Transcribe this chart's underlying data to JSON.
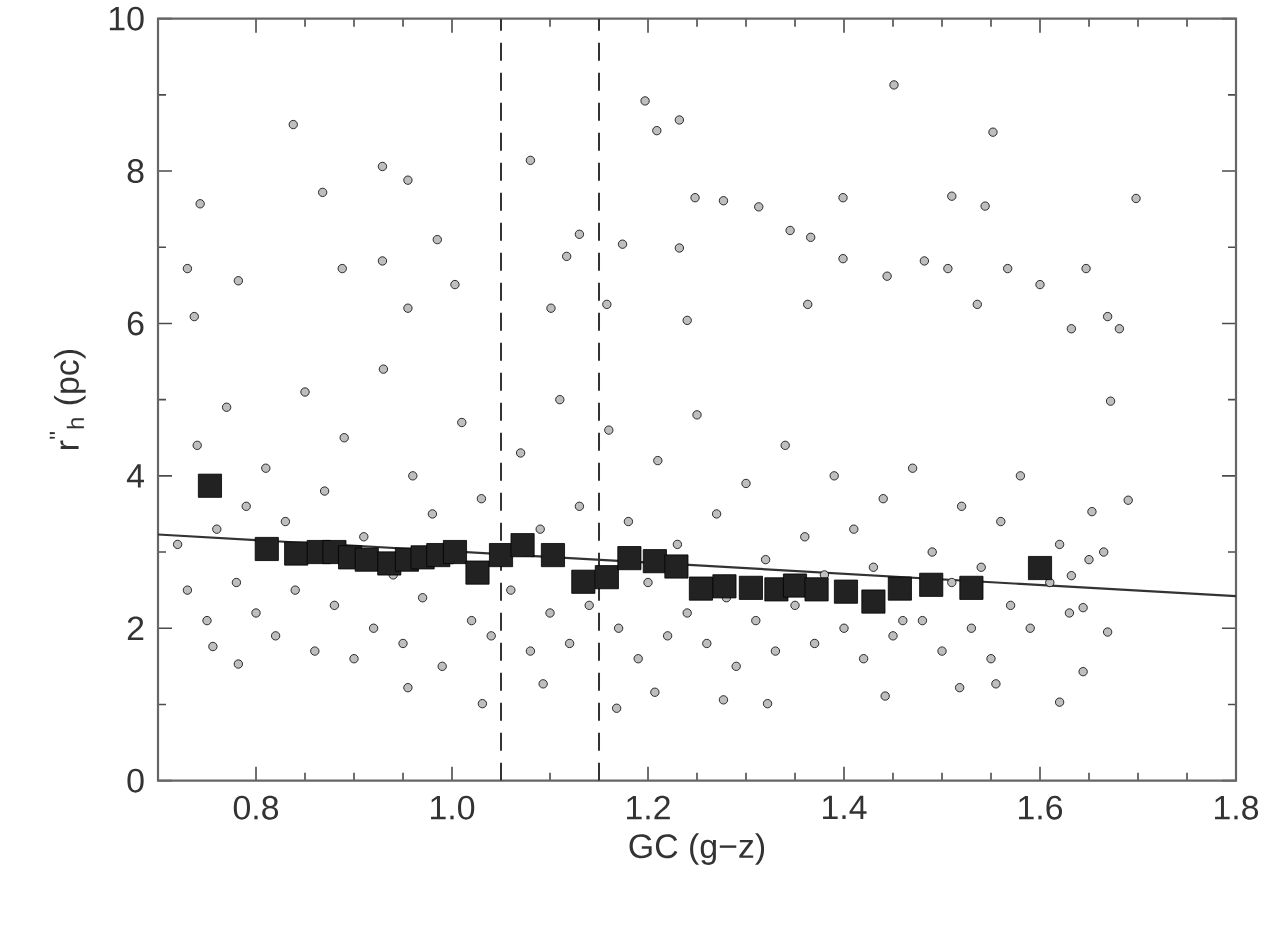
{
  "chart_data": {
    "type": "scatter",
    "xlabel": "GC (g−z)",
    "ylabel": "r$^{''}$$_{h}$ (pc)",
    "xlim": [
      0.7,
      1.8
    ],
    "ylim": [
      0,
      10
    ],
    "xticks": [
      0.8,
      {
        "value": 1.0,
        "label": "1.0"
      },
      1.2,
      1.4,
      1.6,
      1.8
    ],
    "yticks": [
      0,
      2,
      4,
      6,
      8,
      10
    ],
    "ref_lines": [
      {
        "axis": "x",
        "value": 1.05,
        "line_style": "dashed",
        "color": "#333333"
      },
      {
        "axis": "x",
        "value": 1.15,
        "line_style": "dashed",
        "color": "#333333"
      }
    ],
    "series": [
      {
        "marker": "circle",
        "color": "#bebebe",
        "x": [
          1.451,
          1.197,
          1.209,
          1.232,
          0.838,
          0.929,
          0.955,
          1.08,
          0.868,
          0.743,
          1.552,
          1.399,
          1.248,
          1.277,
          1.313,
          1.698,
          1.51,
          1.544,
          0.985,
          1.13,
          1.174,
          1.345,
          1.366,
          1.482,
          1.567,
          0.73,
          0.888,
          0.929,
          1.399,
          1.506,
          1.647,
          1.117,
          1.232,
          0.782,
          1.003,
          1.158,
          1.363,
          1.444,
          1.6,
          1.681,
          1.669,
          0.737,
          0.955,
          1.101,
          1.24,
          1.536,
          1.632,
          1.672,
          1.62,
          1.277,
          1.031,
          1.168,
          1.442,
          0.782,
          0.756,
          1.669,
          1.644,
          1.555,
          1.518,
          0.955,
          1.093,
          1.207,
          1.322,
          1.69,
          1.653,
          1.665,
          1.632,
          1.644,
          0.72,
          0.73,
          0.74,
          0.75,
          0.76,
          0.77,
          0.78,
          0.79,
          0.8,
          0.81,
          0.82,
          0.83,
          0.84,
          0.85,
          0.86,
          0.87,
          0.88,
          0.89,
          0.9,
          0.91,
          0.92,
          0.93,
          0.94,
          0.95,
          0.96,
          0.97,
          0.98,
          0.99,
          1.0,
          1.01,
          1.02,
          1.03,
          1.04,
          1.06,
          1.07,
          1.08,
          1.09,
          1.1,
          1.11,
          1.12,
          1.13,
          1.14,
          1.16,
          1.17,
          1.18,
          1.19,
          1.2,
          1.21,
          1.22,
          1.23,
          1.24,
          1.25,
          1.26,
          1.27,
          1.28,
          1.29,
          1.3,
          1.31,
          1.32,
          1.33,
          1.34,
          1.35,
          1.36,
          1.37,
          1.38,
          1.39,
          1.4,
          1.41,
          1.42,
          1.43,
          1.44,
          1.45,
          1.46,
          1.47,
          1.48,
          1.49,
          1.5,
          1.51,
          1.52,
          1.53,
          1.54,
          1.55,
          1.56,
          1.57,
          1.58,
          1.59,
          1.61,
          1.62,
          1.63,
          1.65
        ],
        "values": [
          9.13,
          8.92,
          8.53,
          8.67,
          8.61,
          8.06,
          7.88,
          8.14,
          7.72,
          7.57,
          8.51,
          7.65,
          7.65,
          7.61,
          7.53,
          7.64,
          7.67,
          7.54,
          7.1,
          7.17,
          7.04,
          7.22,
          7.13,
          6.82,
          6.72,
          6.72,
          6.72,
          6.82,
          6.85,
          6.72,
          6.72,
          6.88,
          6.99,
          6.56,
          6.51,
          6.25,
          6.25,
          6.62,
          6.51,
          5.93,
          6.09,
          6.09,
          6.2,
          6.2,
          6.04,
          6.25,
          5.93,
          4.98,
          1.03,
          1.06,
          1.01,
          0.95,
          1.11,
          1.53,
          1.76,
          1.95,
          1.43,
          1.27,
          1.22,
          1.22,
          1.27,
          1.16,
          1.01,
          3.68,
          3.53,
          3.0,
          2.69,
          2.27,
          3.1,
          2.5,
          4.4,
          2.1,
          3.3,
          4.9,
          2.6,
          3.6,
          2.2,
          4.1,
          1.9,
          3.4,
          2.5,
          5.1,
          1.7,
          3.8,
          2.3,
          4.5,
          1.6,
          3.2,
          2.0,
          5.4,
          2.7,
          1.8,
          4.0,
          2.4,
          3.5,
          1.5,
          2.9,
          4.7,
          2.1,
          3.7,
          1.9,
          2.5,
          4.3,
          1.7,
          3.3,
          2.2,
          5.0,
          1.8,
          3.6,
          2.3,
          4.6,
          2.0,
          3.4,
          1.6,
          2.6,
          4.2,
          1.9,
          3.1,
          2.2,
          4.8,
          1.8,
          3.5,
          2.4,
          1.5,
          3.9,
          2.1,
          2.9,
          1.7,
          4.4,
          2.3,
          3.2,
          1.8,
          2.7,
          4.0,
          2.0,
          3.3,
          1.6,
          2.8,
          3.7,
          1.9,
          2.1,
          4.1,
          2.1,
          3.0,
          1.7,
          2.6,
          3.6,
          2.0,
          2.8,
          1.6,
          3.4,
          2.3,
          4.0,
          2.0,
          2.6,
          3.1,
          2.2,
          2.9
        ]
      },
      {
        "type": "line",
        "marker": "none",
        "color": "#333333",
        "x": [
          0.7,
          1.8
        ],
        "values": [
          3.23,
          2.42
        ]
      },
      {
        "type": "scatter",
        "marker": "square",
        "color": "#222222",
        "x": [
          0.753,
          0.811,
          0.841,
          0.864,
          0.88,
          0.896,
          0.913,
          0.936,
          0.954,
          0.97,
          0.986,
          1.003,
          1.026,
          1.05,
          1.072,
          1.103,
          1.134,
          1.158,
          1.181,
          1.207,
          1.229,
          1.254,
          1.278,
          1.305,
          1.331,
          1.35,
          1.372,
          1.402,
          1.43,
          1.457,
          1.489,
          1.53,
          1.6
        ],
        "values": [
          3.87,
          3.04,
          2.98,
          3.0,
          3.0,
          2.93,
          2.9,
          2.85,
          2.9,
          2.93,
          2.96,
          3.0,
          2.73,
          2.96,
          3.09,
          2.96,
          2.61,
          2.67,
          2.92,
          2.88,
          2.81,
          2.52,
          2.55,
          2.53,
          2.51,
          2.56,
          2.51,
          2.48,
          2.35,
          2.52,
          2.57,
          2.53,
          2.79
        ]
      }
    ]
  }
}
